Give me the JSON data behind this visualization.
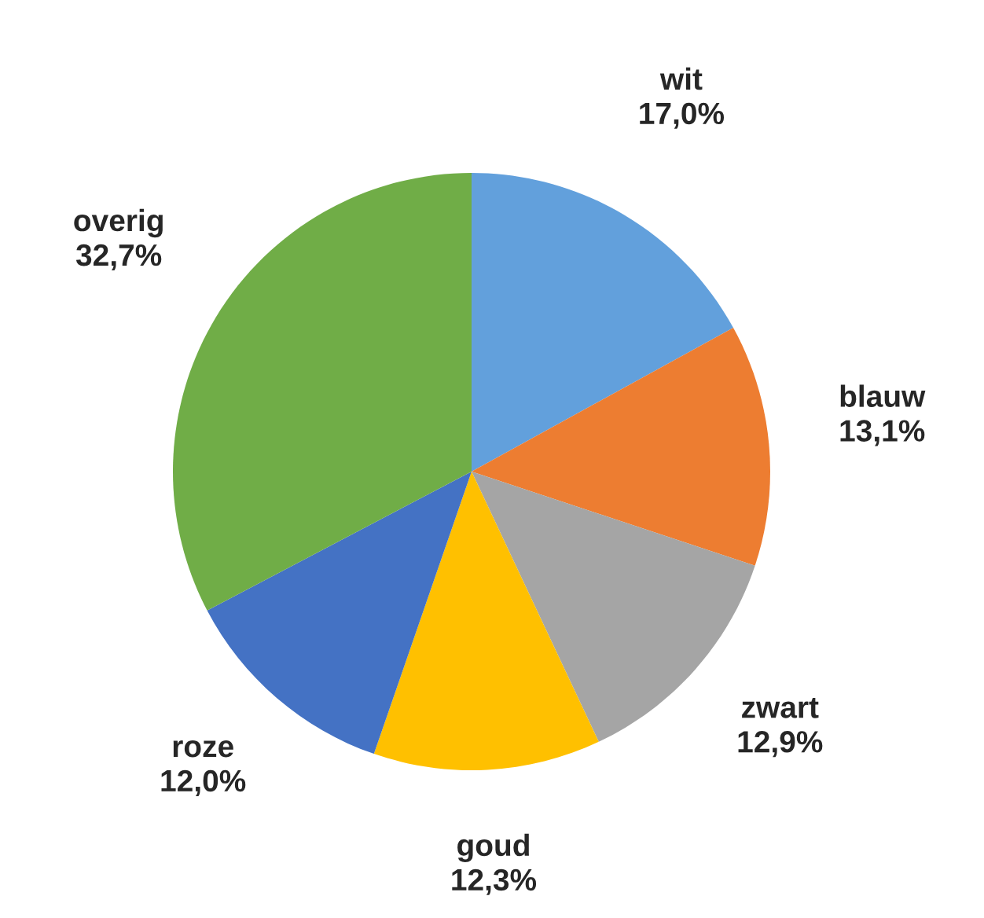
{
  "chart_data": {
    "type": "pie",
    "categories": [
      "wit",
      "blauw",
      "zwart",
      "goud",
      "roze",
      "overig"
    ],
    "values": [
      17.0,
      13.1,
      12.9,
      12.3,
      12.0,
      32.7
    ],
    "value_labels": [
      "17,0%",
      "13,1%",
      "12,9%",
      "12,3%",
      "12,0%",
      "32,7%"
    ],
    "colors": [
      "#62a0dc",
      "#ed7d31",
      "#a5a5a5",
      "#ffc000",
      "#4472c4",
      "#70ad47"
    ],
    "legend": false
  }
}
